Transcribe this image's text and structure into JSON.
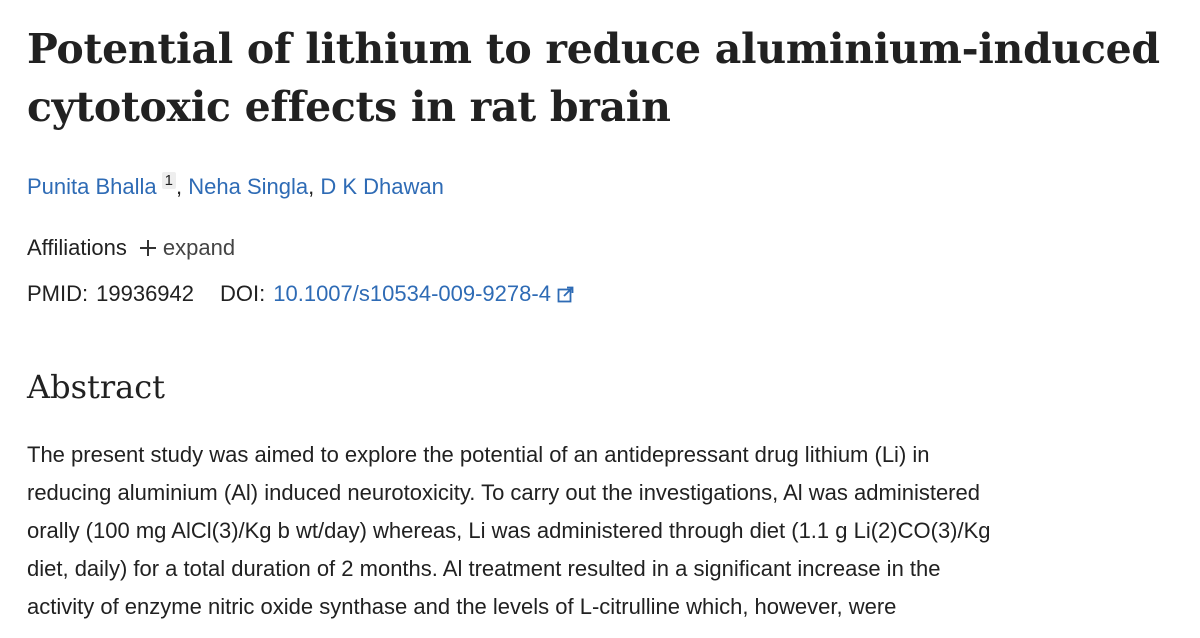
{
  "header": {
    "title_lines": [
      "Potential of lithium to reduce aluminium-induced",
      "cytotoxic effects in rat brain"
    ]
  },
  "authors": [
    {
      "name": "Punita Bhalla",
      "sup": "1",
      "sep": ","
    },
    {
      "name": "Neha Singla",
      "sep": ","
    },
    {
      "name": "D K Dhawan"
    }
  ],
  "meta": {
    "affiliations_label": "Affiliations",
    "expand_label": "expand",
    "pmid_label": "PMID:",
    "pmid": "19936942",
    "doi_label": "DOI:",
    "doi": "10.1007/s10534-009-9278-4"
  },
  "abstract": {
    "heading": "Abstract",
    "lines": [
      "The present study was aimed to explore the potential of an antidepressant drug lithium (Li) in",
      "reducing aluminium (Al) induced neurotoxicity. To carry out the investigations, Al was administered",
      "orally (100 mg AlCl(3)/Kg b wt/day) whereas, Li was administered through diet (1.1 g Li(2)CO(3)/Kg",
      "diet, daily) for a total duration of 2 months. Al treatment resulted in a significant increase in the",
      "activity of enzyme nitric oxide synthase and the levels of L-citrulline which, however, were"
    ]
  }
}
